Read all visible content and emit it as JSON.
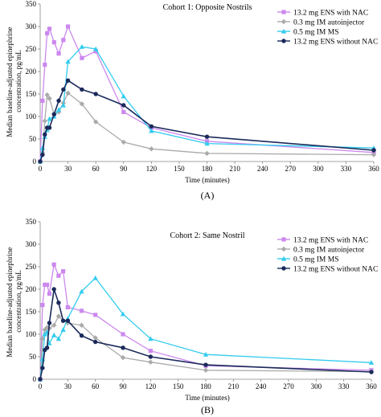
{
  "chart_data": [
    {
      "type": "line",
      "panel_label": "(A)",
      "title": "Cohort 1: Opposite Nostrils",
      "xlabel": "Time (minutes)",
      "ylabel": "Median baseline-adjusted epinephrine concentration, pg/mL",
      "xlim": [
        0,
        360
      ],
      "ylim": [
        0,
        350
      ],
      "xticks": [
        0,
        30,
        60,
        90,
        120,
        150,
        180,
        210,
        240,
        270,
        300,
        330,
        360
      ],
      "yticks": [
        0,
        50,
        100,
        150,
        200,
        250,
        300,
        350
      ],
      "grid": false,
      "legend": "top-right",
      "series": [
        {
          "name": "13.2 mg ENS with NAC",
          "color": "#cc88ee",
          "marker": "square",
          "x": [
            0,
            2.5,
            5,
            7.5,
            10,
            15,
            20,
            25,
            30,
            45,
            60,
            90,
            120,
            180,
            360
          ],
          "y": [
            0,
            135,
            215,
            285,
            295,
            265,
            240,
            270,
            300,
            230,
            245,
            110,
            75,
            45,
            20
          ]
        },
        {
          "name": "0.3 mg IM autoinjector",
          "color": "#aaaaaa",
          "marker": "diamond",
          "x": [
            0,
            2.5,
            5,
            7.5,
            10,
            15,
            20,
            25,
            30,
            45,
            60,
            90,
            120,
            180,
            360
          ],
          "y": [
            0,
            20,
            90,
            148,
            140,
            105,
            110,
            130,
            152,
            128,
            88,
            43,
            28,
            18,
            15
          ]
        },
        {
          "name": "0.5 mg IM MS",
          "color": "#33ccee",
          "marker": "triangle",
          "x": [
            0,
            2.5,
            5,
            7.5,
            10,
            15,
            20,
            25,
            30,
            45,
            60,
            90,
            120,
            180,
            360
          ],
          "y": [
            0,
            30,
            55,
            70,
            95,
            100,
            115,
            125,
            222,
            255,
            250,
            145,
            68,
            40,
            30
          ]
        },
        {
          "name": "13.2 mg ENS without NAC",
          "color": "#1a2a5a",
          "marker": "circle",
          "x": [
            0,
            2.5,
            5,
            7.5,
            10,
            15,
            20,
            25,
            30,
            45,
            60,
            90,
            120,
            180,
            360
          ],
          "y": [
            0,
            15,
            60,
            75,
            75,
            105,
            135,
            160,
            180,
            160,
            150,
            125,
            78,
            55,
            25
          ]
        }
      ]
    },
    {
      "type": "line",
      "panel_label": "(B)",
      "title": "Cohort 2: Same Nostril",
      "xlabel": "Time (minutes)",
      "ylabel": "Median baseline-adjusted epinephrine concentration, pg/mL",
      "xlim": [
        0,
        360
      ],
      "ylim": [
        0,
        350
      ],
      "xticks": [
        0,
        30,
        60,
        90,
        120,
        150,
        180,
        210,
        240,
        270,
        300,
        330,
        360
      ],
      "yticks": [
        0,
        50,
        100,
        150,
        200,
        250,
        300,
        350
      ],
      "grid": false,
      "legend": "top-right",
      "series": [
        {
          "name": "13.2 mg ENS with NAC",
          "color": "#cc88ee",
          "marker": "square",
          "x": [
            0,
            2.5,
            5,
            7.5,
            10,
            15,
            20,
            25,
            30,
            45,
            60,
            90,
            120,
            180,
            360
          ],
          "y": [
            0,
            165,
            210,
            210,
            190,
            255,
            230,
            240,
            160,
            152,
            143,
            100,
            63,
            30,
            20
          ]
        },
        {
          "name": "0.3 mg IM autoinjector",
          "color": "#aaaaaa",
          "marker": "diamond",
          "x": [
            0,
            2.5,
            5,
            7.5,
            10,
            15,
            20,
            25,
            30,
            45,
            60,
            90,
            120,
            180,
            360
          ],
          "y": [
            0,
            90,
            110,
            115,
            113,
            120,
            140,
            130,
            125,
            120,
            92,
            48,
            38,
            20,
            17
          ]
        },
        {
          "name": "0.5 mg IM MS",
          "color": "#33ccee",
          "marker": "triangle",
          "x": [
            0,
            2.5,
            5,
            7.5,
            10,
            15,
            20,
            25,
            30,
            45,
            60,
            90,
            120,
            180,
            360
          ],
          "y": [
            0,
            45,
            100,
            105,
            80,
            98,
            90,
            110,
            135,
            195,
            225,
            145,
            90,
            55,
            37
          ]
        },
        {
          "name": "13.2 mg ENS without NAC",
          "color": "#1a2a5a",
          "marker": "circle",
          "x": [
            0,
            2.5,
            5,
            7.5,
            10,
            15,
            20,
            25,
            30,
            45,
            60,
            90,
            120,
            180,
            360
          ],
          "y": [
            0,
            25,
            65,
            70,
            125,
            200,
            170,
            130,
            130,
            97,
            83,
            70,
            50,
            32,
            16
          ]
        }
      ]
    }
  ]
}
